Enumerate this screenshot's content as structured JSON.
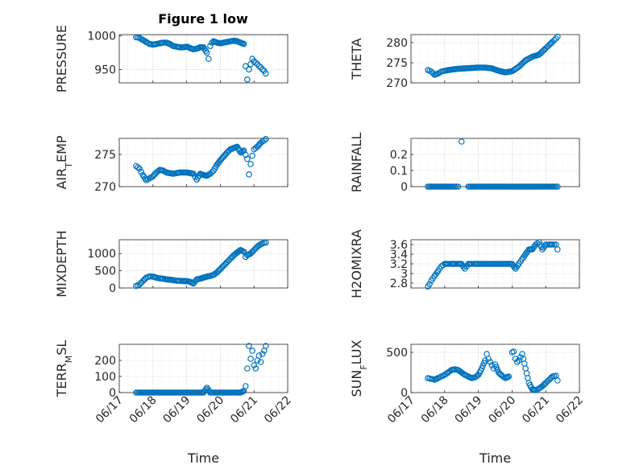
{
  "figure": {
    "title": "Figure 1 low",
    "marker_color": "#0072BD"
  },
  "chart_data": [
    {
      "type": "scatter",
      "ylabel": "PRESSURE",
      "ylim": [
        930,
        1002
      ],
      "yticks": [
        {
          "v": 950,
          "label": "950"
        },
        {
          "v": 1000,
          "label": "1000"
        }
      ],
      "xlim": [
        0,
        5
      ],
      "xtick_labels": [],
      "grid": true,
      "x": [
        0.5,
        0.6,
        0.7,
        0.8,
        0.9,
        1.0,
        1.1,
        1.2,
        1.3,
        1.4,
        1.5,
        1.6,
        1.7,
        1.8,
        1.9,
        2.0,
        2.1,
        2.2,
        2.3,
        2.4,
        2.5,
        2.6,
        2.65,
        2.7,
        2.75,
        2.8,
        2.9,
        3.0,
        3.1,
        3.2,
        3.3,
        3.4,
        3.5,
        3.6,
        3.7,
        3.75,
        3.8,
        3.85,
        3.9,
        3.95,
        4.0,
        4.05,
        4.1,
        4.15,
        4.2,
        4.25,
        4.3,
        4.35
      ],
      "y": [
        998,
        997,
        994,
        991,
        988,
        987,
        988,
        989,
        990,
        990,
        988,
        985,
        984,
        983,
        983,
        984,
        982,
        980,
        981,
        983,
        983,
        975,
        966,
        985,
        990,
        992,
        990,
        989,
        990,
        991,
        992,
        993,
        992,
        990,
        988,
        955,
        935,
        950,
        958,
        966,
        962,
        960,
        958,
        955,
        953,
        950,
        948,
        944
      ]
    },
    {
      "type": "scatter",
      "ylabel": "THETA",
      "ylim": [
        270,
        282
      ],
      "yticks": [
        {
          "v": 270,
          "label": "270"
        },
        {
          "v": 275,
          "label": "275"
        },
        {
          "v": 280,
          "label": "280"
        }
      ],
      "xlim": [
        0,
        5
      ],
      "xtick_labels": [],
      "grid": true,
      "x": [
        0.5,
        0.6,
        0.7,
        0.8,
        0.9,
        1.0,
        1.2,
        1.4,
        1.6,
        1.8,
        2.0,
        2.2,
        2.4,
        2.6,
        2.8,
        3.0,
        3.2,
        3.4,
        3.6,
        3.8,
        3.9,
        4.0,
        4.1,
        4.2,
        4.3,
        4.35
      ],
      "y": [
        273.2,
        272.8,
        272.0,
        272.3,
        272.8,
        273.0,
        273.3,
        273.5,
        273.6,
        273.7,
        273.8,
        273.8,
        273.6,
        273.0,
        272.6,
        272.9,
        274.0,
        275.6,
        276.5,
        277.0,
        277.8,
        278.6,
        279.4,
        280.2,
        281.0,
        281.5
      ]
    },
    {
      "type": "scatter",
      "ylabel": "AIR_TEMP",
      "ylim": [
        270,
        277.5
      ],
      "yticks": [
        {
          "v": 270,
          "label": "270"
        },
        {
          "v": 275,
          "label": "275"
        }
      ],
      "xlim": [
        0,
        5
      ],
      "xtick_labels": [],
      "grid": true,
      "x": [
        0.5,
        0.6,
        0.7,
        0.8,
        0.9,
        1.0,
        1.1,
        1.2,
        1.3,
        1.4,
        1.5,
        1.6,
        1.7,
        1.8,
        1.9,
        2.0,
        2.1,
        2.2,
        2.3,
        2.4,
        2.5,
        2.6,
        2.7,
        2.8,
        2.9,
        3.0,
        3.1,
        3.2,
        3.3,
        3.4,
        3.5,
        3.6,
        3.7,
        3.8,
        3.85,
        3.9,
        3.95,
        4.0,
        4.1,
        4.2,
        4.3,
        4.35
      ],
      "y": [
        273.2,
        272.8,
        271.8,
        271.0,
        271.3,
        271.6,
        272.2,
        272.6,
        272.5,
        272.2,
        272.1,
        272.0,
        272.1,
        272.2,
        272.2,
        272.2,
        272.1,
        272.0,
        271.1,
        272.0,
        271.8,
        271.7,
        272.0,
        272.5,
        273.4,
        274.1,
        274.7,
        275.3,
        275.8,
        276.0,
        276.2,
        275.3,
        275.6,
        274.3,
        271.9,
        273.5,
        274.8,
        275.8,
        276.2,
        276.8,
        277.2,
        277.4
      ]
    },
    {
      "type": "scatter",
      "ylabel": "RAINFALL",
      "ylim": [
        0,
        0.3
      ],
      "yticks": [
        {
          "v": 0,
          "label": "0"
        },
        {
          "v": 0.1,
          "label": "0.1"
        },
        {
          "v": 0.2,
          "label": "0.2"
        }
      ],
      "xlim": [
        0,
        5
      ],
      "xtick_labels": [],
      "grid": true,
      "x": [
        0.5,
        0.7,
        0.9,
        1.1,
        1.3,
        1.4,
        1.5,
        1.7,
        1.9,
        2.1,
        2.3,
        2.5,
        2.7,
        2.9,
        3.1,
        3.3,
        3.5,
        3.7,
        3.9,
        4.1,
        4.3,
        4.35
      ],
      "y": [
        0,
        0,
        0,
        0,
        0,
        0,
        0.28,
        0,
        0,
        0,
        0,
        0,
        0,
        0,
        0,
        0,
        0,
        0,
        0,
        0,
        0,
        0
      ]
    },
    {
      "type": "scatter",
      "ylabel": "MIXDEPTH",
      "ylim": [
        0,
        1400
      ],
      "yticks": [
        {
          "v": 0,
          "label": "0"
        },
        {
          "v": 500,
          "label": "500"
        },
        {
          "v": 1000,
          "label": "1000"
        }
      ],
      "xlim": [
        0,
        5
      ],
      "xtick_labels": [],
      "grid": true,
      "x": [
        0.5,
        0.6,
        0.7,
        0.8,
        0.9,
        1.0,
        1.1,
        1.2,
        1.3,
        1.4,
        1.5,
        1.6,
        1.7,
        1.8,
        1.9,
        2.0,
        2.1,
        2.2,
        2.3,
        2.4,
        2.5,
        2.6,
        2.7,
        2.8,
        2.9,
        3.0,
        3.1,
        3.2,
        3.3,
        3.4,
        3.5,
        3.6,
        3.7,
        3.75,
        3.8,
        3.9,
        4.0,
        4.1,
        4.2,
        4.3,
        4.35
      ],
      "y": [
        60,
        100,
        200,
        300,
        340,
        330,
        300,
        280,
        270,
        250,
        240,
        230,
        210,
        210,
        200,
        200,
        180,
        130,
        250,
        270,
        300,
        330,
        350,
        380,
        450,
        550,
        650,
        750,
        850,
        950,
        1030,
        1100,
        1050,
        900,
        950,
        1000,
        1100,
        1200,
        1270,
        1310,
        1320
      ]
    },
    {
      "type": "scatter",
      "ylabel": "H2OMIXRA",
      "ylim": [
        2.7,
        3.7
      ],
      "yticks": [
        {
          "v": 2.8,
          "label": "2.8"
        },
        {
          "v": 3.0,
          "label": "3"
        },
        {
          "v": 3.2,
          "label": "3.2"
        },
        {
          "v": 3.4,
          "label": "3.4"
        },
        {
          "v": 3.6,
          "label": "3.6"
        }
      ],
      "xlim": [
        0,
        5
      ],
      "xtick_labels": [],
      "grid": true,
      "x": [
        0.5,
        0.55,
        0.6,
        0.65,
        0.7,
        0.8,
        0.9,
        1.0,
        1.1,
        1.2,
        1.3,
        1.4,
        1.5,
        1.6,
        1.7,
        1.8,
        1.9,
        2.0,
        2.2,
        2.4,
        2.6,
        2.8,
        3.0,
        3.1,
        3.2,
        3.3,
        3.4,
        3.5,
        3.6,
        3.7,
        3.8,
        3.9,
        4.0,
        4.1,
        4.2,
        4.3,
        4.35
      ],
      "y": [
        2.73,
        2.78,
        2.85,
        2.9,
        2.95,
        3.05,
        3.15,
        3.2,
        3.2,
        3.2,
        3.2,
        3.2,
        3.2,
        3.1,
        3.2,
        3.2,
        3.2,
        3.2,
        3.2,
        3.2,
        3.2,
        3.2,
        3.2,
        3.1,
        3.2,
        3.3,
        3.4,
        3.5,
        3.5,
        3.6,
        3.65,
        3.5,
        3.6,
        3.6,
        3.6,
        3.6,
        3.5
      ]
    },
    {
      "type": "scatter",
      "ylabel": "TERR_MSL",
      "ylim": [
        0,
        300
      ],
      "yticks": [
        {
          "v": 0,
          "label": "0"
        },
        {
          "v": 100,
          "label": "100"
        },
        {
          "v": 200,
          "label": "200"
        }
      ],
      "xlim": [
        0,
        5
      ],
      "xtick_labels": [
        "06/17",
        "06/18",
        "06/19",
        "06/20",
        "06/21",
        "06/22"
      ],
      "xlabel": "Time",
      "grid": true,
      "x": [
        0.5,
        0.7,
        0.9,
        1.1,
        1.3,
        1.5,
        1.7,
        1.9,
        2.1,
        2.3,
        2.5,
        2.6,
        2.7,
        2.9,
        3.1,
        3.3,
        3.5,
        3.6,
        3.7,
        3.75,
        3.8,
        3.85,
        3.9,
        3.95,
        4.0,
        4.05,
        4.1,
        4.15,
        4.2,
        4.25,
        4.3,
        4.35
      ],
      "y": [
        0,
        0,
        0,
        0,
        0,
        0,
        0,
        0,
        0,
        0,
        0,
        30,
        0,
        0,
        0,
        0,
        0,
        0,
        10,
        40,
        150,
        290,
        210,
        260,
        170,
        150,
        200,
        230,
        190,
        240,
        260,
        290
      ]
    },
    {
      "type": "scatter",
      "ylabel": "SUN_FLUX",
      "ylim": [
        0,
        600
      ],
      "yticks": [
        {
          "v": 0,
          "label": "0"
        },
        {
          "v": 500,
          "label": "500"
        }
      ],
      "xlim": [
        0,
        5
      ],
      "xtick_labels": [
        "06/17",
        "06/18",
        "06/19",
        "06/20",
        "06/21",
        "06/22"
      ],
      "xlabel": "Time",
      "grid": true,
      "x": [
        0.5,
        0.6,
        0.7,
        0.8,
        0.9,
        1.0,
        1.1,
        1.2,
        1.3,
        1.4,
        1.5,
        1.6,
        1.7,
        1.8,
        1.9,
        2.0,
        2.1,
        2.2,
        2.25,
        2.3,
        2.35,
        2.4,
        2.45,
        2.5,
        2.6,
        2.7,
        2.8,
        2.9,
        3.0,
        3.05,
        3.1,
        3.15,
        3.2,
        3.3,
        3.4,
        3.5,
        3.6,
        3.7,
        3.8,
        3.9,
        4.0,
        4.1,
        4.2,
        4.3,
        4.35
      ],
      "y": [
        180,
        170,
        160,
        180,
        200,
        220,
        250,
        280,
        290,
        280,
        250,
        220,
        200,
        180,
        190,
        220,
        300,
        400,
        480,
        420,
        380,
        340,
        300,
        350,
        250,
        210,
        180,
        200,
        500,
        510,
        420,
        380,
        400,
        480,
        300,
        120,
        40,
        30,
        50,
        80,
        120,
        160,
        200,
        210,
        150
      ]
    }
  ]
}
